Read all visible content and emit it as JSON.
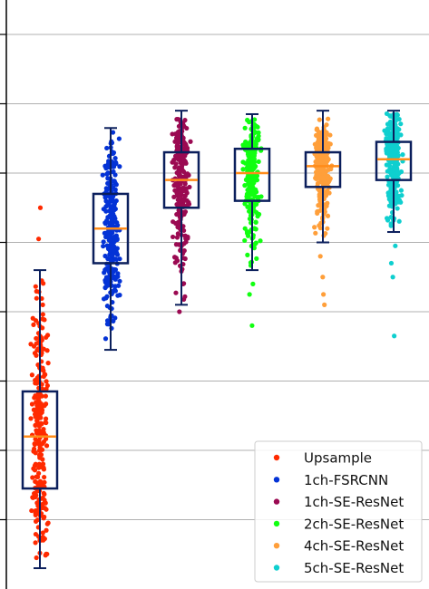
{
  "chart_data": {
    "type": "box",
    "grid": true,
    "legend_position": "lower-right",
    "ylim": [
      0,
      8.6
    ],
    "series": [
      {
        "name": "Upsample",
        "color": "#ff2a00",
        "whisker_low": 0.3,
        "q1": 1.45,
        "median": 2.2,
        "q3": 2.85,
        "whisker_high": 4.6,
        "outliers": [
          5.5,
          5.05
        ]
      },
      {
        "name": "1ch-FSRCNN",
        "color": "#0433d6",
        "whisker_low": 3.45,
        "q1": 4.7,
        "median": 5.2,
        "q3": 5.7,
        "whisker_high": 6.65,
        "outliers": []
      },
      {
        "name": "1ch-SE-ResNet",
        "color": "#9b0a52",
        "whisker_low": 4.1,
        "q1": 5.5,
        "median": 5.9,
        "q3": 6.3,
        "whisker_high": 6.9,
        "outliers": [
          4.0,
          4.4
        ]
      },
      {
        "name": "2ch-SE-ResNet",
        "color": "#11ff11",
        "whisker_low": 4.6,
        "q1": 5.6,
        "median": 6.0,
        "q3": 6.35,
        "whisker_high": 6.85,
        "outliers": [
          3.8,
          4.25,
          4.4
        ]
      },
      {
        "name": "4ch-SE-ResNet",
        "color": "#ff9f3a",
        "whisker_low": 5.0,
        "q1": 5.8,
        "median": 6.1,
        "q3": 6.3,
        "whisker_high": 6.9,
        "outliers": [
          4.1,
          4.25,
          4.5,
          4.8
        ]
      },
      {
        "name": "5ch-SE-ResNet",
        "color": "#0fcfcf",
        "whisker_low": 5.15,
        "q1": 5.9,
        "median": 6.2,
        "q3": 6.45,
        "whisker_high": 6.9,
        "outliers": [
          3.65,
          4.5,
          4.7,
          4.95
        ]
      }
    ]
  },
  "style": {
    "box_edge_color": "#0b1f5c",
    "median_color": "#ff8c1a",
    "grid_color": "#b0b0b0"
  }
}
